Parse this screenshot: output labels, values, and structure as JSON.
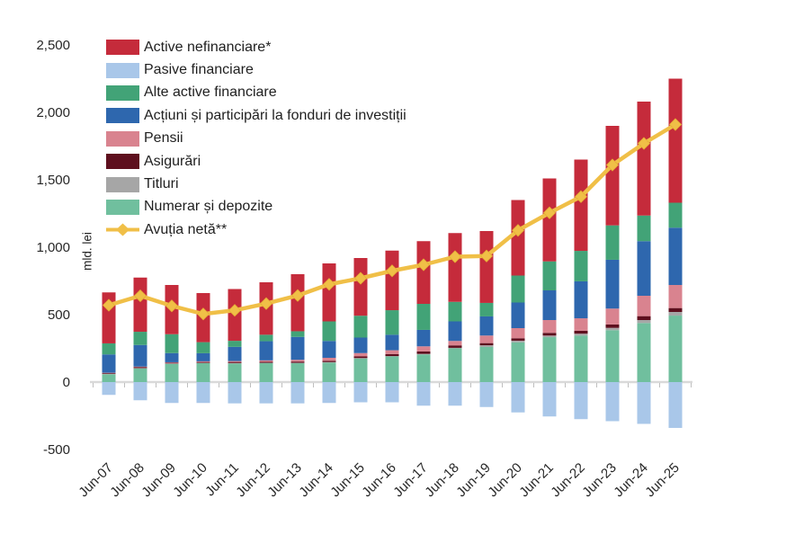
{
  "chart_data": {
    "type": "bar",
    "subtype": "stacked-bar-with-line",
    "title": "",
    "xlabel": "",
    "ylabel": "mld. lei",
    "ylim": [
      -500,
      2500
    ],
    "y_ticks": [
      {
        "value": 2500,
        "label": "2,500"
      },
      {
        "value": 2000,
        "label": "2,000"
      },
      {
        "value": 1500,
        "label": "1,500"
      },
      {
        "value": 1000,
        "label": "1,000"
      },
      {
        "value": 500,
        "label": "500"
      },
      {
        "value": 0,
        "label": "0"
      },
      {
        "value": -500,
        "label": "-500"
      }
    ],
    "grid": false,
    "legend_position": "top-left-inside",
    "categories": [
      "Jun-07",
      "Jun-08",
      "Jun-09",
      "Jun-10",
      "Jun-11",
      "Jun-12",
      "Jun-13",
      "Jun-14",
      "Jun-15",
      "Jun-16",
      "Jun-17",
      "Jun-18",
      "Jun-19",
      "Jun-20",
      "Jun-21",
      "Jun-22",
      "Jun-23",
      "Jun-24",
      "Jun-25"
    ],
    "series": [
      {
        "name": "Numerar și depozite",
        "color": "#70BF9E",
        "values": [
          58,
          100,
          135,
          140,
          138,
          140,
          140,
          145,
          175,
          190,
          205,
          250,
          260,
          295,
          333,
          345,
          385,
          438,
          493
        ]
      },
      {
        "name": "Titluri",
        "color": "#A6A6A6",
        "values": [
          3,
          4,
          3,
          3,
          3,
          3,
          3,
          3,
          3,
          3,
          4,
          4,
          13,
          12,
          12,
          14,
          17,
          22,
          27
        ]
      },
      {
        "name": "Asigurări",
        "color": "#5E0F1E",
        "values": [
          6,
          8,
          5,
          6,
          8,
          8,
          9,
          10,
          12,
          15,
          18,
          18,
          16,
          18,
          20,
          22,
          25,
          29,
          29
        ]
      },
      {
        "name": "Pensii",
        "color": "#D9838F",
        "values": [
          2,
          3,
          4,
          5,
          7,
          10,
          13,
          22,
          25,
          28,
          38,
          33,
          56,
          75,
          95,
          92,
          118,
          151,
          171
        ]
      },
      {
        "name": "Acțiuni și participări la fonduri de investiții",
        "color": "#2E67AE",
        "values": [
          136,
          160,
          68,
          60,
          105,
          142,
          170,
          125,
          115,
          115,
          122,
          145,
          142,
          190,
          220,
          274,
          362,
          405,
          425
        ]
      },
      {
        "name": "Alte active financiare",
        "color": "#42A377",
        "values": [
          82,
          98,
          140,
          82,
          45,
          48,
          42,
          145,
          162,
          182,
          193,
          145,
          100,
          200,
          215,
          226,
          255,
          190,
          185
        ]
      },
      {
        "name": "Active nefinanciare*",
        "color": "#C52B3B",
        "values": [
          378,
          402,
          365,
          364,
          384,
          389,
          423,
          430,
          428,
          442,
          465,
          510,
          533,
          560,
          615,
          677,
          738,
          845,
          920
        ]
      }
    ],
    "negative_series": {
      "name": "Pasive financiare",
      "color": "#A9C7E9",
      "values": [
        -95,
        -135,
        -155,
        -155,
        -158,
        -158,
        -158,
        -155,
        -150,
        -150,
        -175,
        -175,
        -185,
        -225,
        -255,
        -275,
        -290,
        -310,
        -340
      ]
    },
    "line_series": {
      "name": "Avuția netă**",
      "color": "#F0BF47",
      "marker": "diamond",
      "values": [
        570,
        640,
        565,
        505,
        532,
        582,
        642,
        725,
        770,
        825,
        870,
        930,
        935,
        1125,
        1255,
        1375,
        1610,
        1770,
        1910
      ]
    },
    "legend": [
      {
        "label": "Active nefinanciare*",
        "color": "#C52B3B",
        "type": "box"
      },
      {
        "label": "Pasive financiare",
        "color": "#A9C7E9",
        "type": "box"
      },
      {
        "label": "Alte active financiare",
        "color": "#42A377",
        "type": "box"
      },
      {
        "label": "Acțiuni și participări la fonduri de investiții",
        "color": "#2E67AE",
        "type": "box"
      },
      {
        "label": "Pensii",
        "color": "#D9838F",
        "type": "box"
      },
      {
        "label": "Asigurări",
        "color": "#5E0F1E",
        "type": "box"
      },
      {
        "label": "Titluri",
        "color": "#A6A6A6",
        "type": "box"
      },
      {
        "label": "Numerar și depozite",
        "color": "#70BF9E",
        "type": "box"
      },
      {
        "label": "Avuția netă**",
        "color": "#F0BF47",
        "type": "line-diamond"
      }
    ]
  }
}
